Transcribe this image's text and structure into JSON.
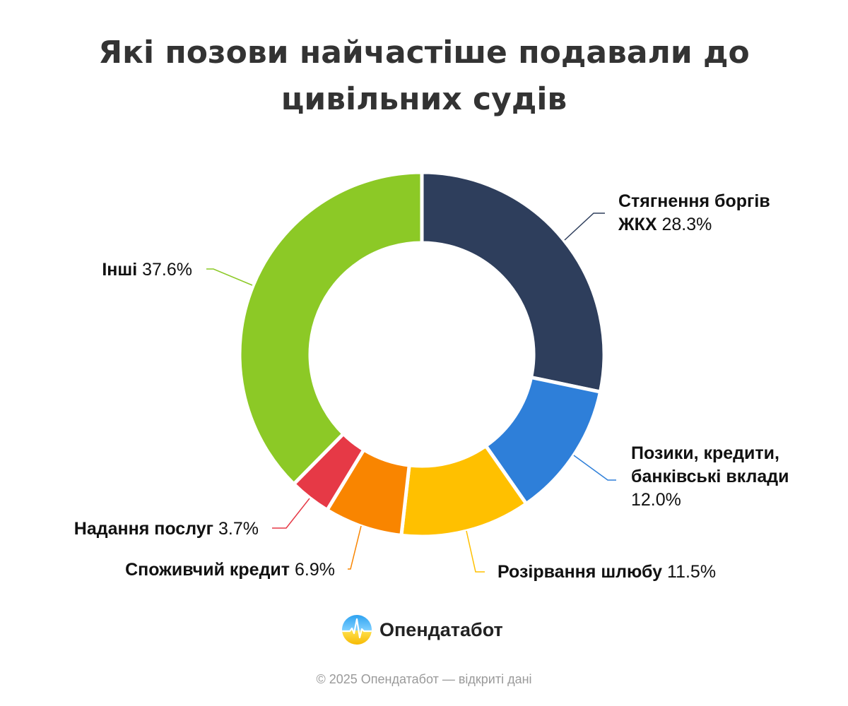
{
  "title": "Які позови найчастіше подавали до цивільних судів",
  "chart_data": {
    "type": "pie",
    "variant": "donut",
    "title": "Які позови найчастіше подавали до цивільних судів",
    "unit": "%",
    "categories": [
      "Стягнення боргів ЖКХ",
      "Позики, кредити, банківські вклади",
      "Розірвання шлюбу",
      "Споживчий кредит",
      "Надання послуг",
      "Інші"
    ],
    "values": [
      28.3,
      12.0,
      11.5,
      6.9,
      3.7,
      37.6
    ],
    "value_labels": [
      "28.3%",
      "12.0%",
      "11.5%",
      "6.9%",
      "3.7%",
      "37.6%"
    ],
    "colors": [
      "#2e3e5c",
      "#2e7fd9",
      "#ffc000",
      "#f98500",
      "#e63946",
      "#8cc926"
    ],
    "label_lines": [
      [
        "Стягнення боргів",
        "ЖКХ"
      ],
      [
        "Позики, кредити,",
        "банківські вклади"
      ],
      [
        "Розірвання шлюбу"
      ],
      [
        "Споживчий кредит"
      ],
      [
        "Надання послуг"
      ],
      [
        "Інші"
      ]
    ],
    "legend": "none"
  },
  "brand": {
    "name": "Опендатабот"
  },
  "footer": "© 2025 Опендатабот — відкриті дані"
}
